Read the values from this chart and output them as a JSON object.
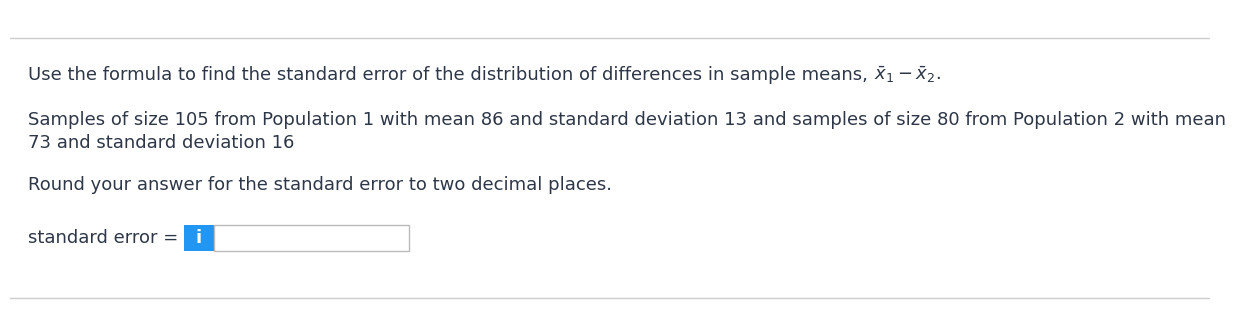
{
  "bg_color": "#ffffff",
  "border_color": "#cccccc",
  "line1_pre": "Use the formula to find the standard error of the distribution of differences in sample means, ",
  "line1_math": "$\\bar{x}_1 - \\bar{x}_2$.",
  "line2": "Samples of size 105 from Population 1 with mean 86 and standard deviation 13 and samples of size 80 from Population 2 with mean",
  "line3": "73 and standard deviation 16",
  "line4": "Round your answer for the standard error to two decimal places.",
  "line5_label": "standard error = ",
  "input_box_color": "#ffffff",
  "input_box_border": "#bbbbbb",
  "icon_bg_color": "#2196F3",
  "icon_text": "i",
  "icon_text_color": "#ffffff",
  "text_color": "#2d3748",
  "font_size": 13.0,
  "fig_width": 12.0,
  "fig_height": 2.95
}
